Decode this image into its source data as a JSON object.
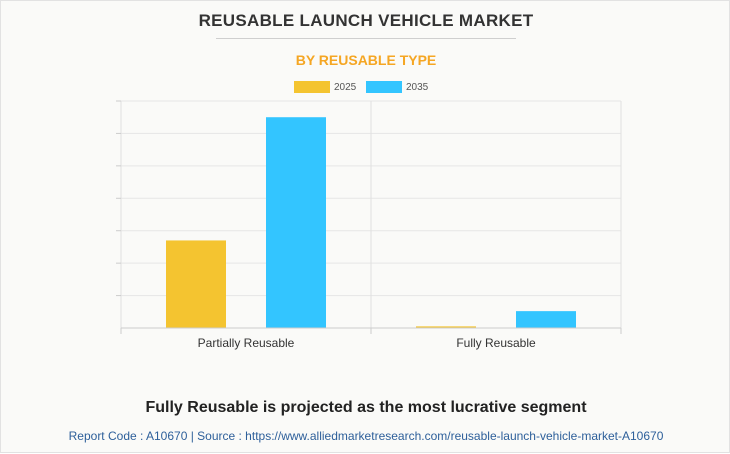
{
  "page": {
    "title": "REUSABLE LAUNCH VEHICLE MARKET",
    "subtitle": "BY REUSABLE TYPE",
    "headline": "Fully Reusable is projected as the most lucrative segment",
    "source": "Report Code : A10670  |  Source : https://www.alliedmarketresearch.com/reusable-launch-vehicle-market-A10670"
  },
  "colors": {
    "title": "#333333",
    "subtitle": "#f5a623",
    "series_2025": "#f4c430",
    "series_2035": "#33c5ff"
  },
  "chart_data": {
    "type": "bar",
    "categories": [
      "Partially Reusable",
      "Fully Reusable"
    ],
    "series": [
      {
        "name": "2025",
        "color": "#f4c430",
        "values": [
          2.7,
          0.05
        ]
      },
      {
        "name": "2035",
        "color": "#33c5ff",
        "values": [
          6.5,
          0.52
        ]
      }
    ],
    "ylim": [
      0,
      7
    ],
    "grid": true,
    "legend": "top-center"
  }
}
